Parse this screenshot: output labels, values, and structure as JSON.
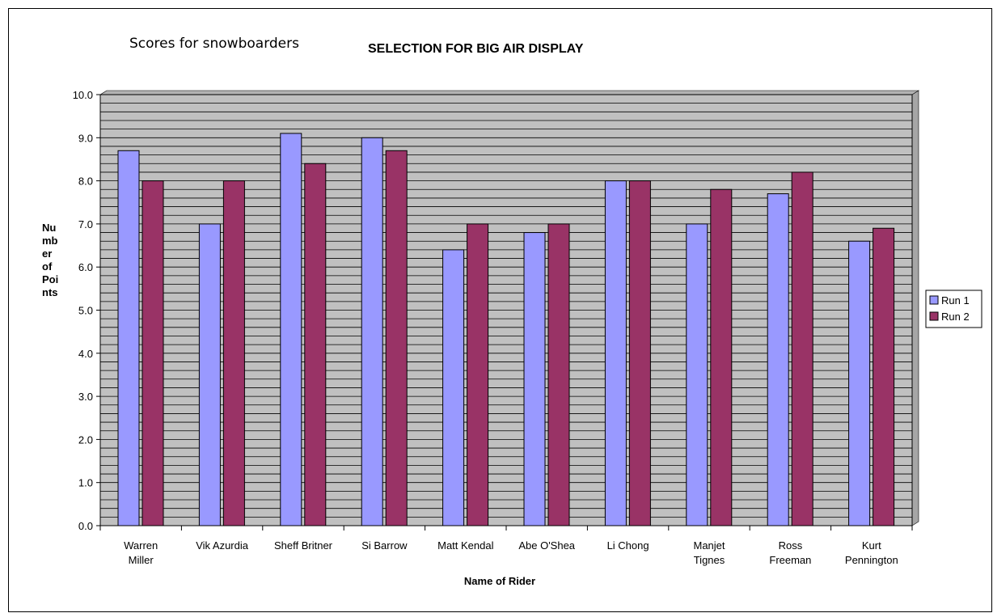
{
  "caption": "Scores for snowboarders",
  "chart_data": {
    "type": "bar",
    "title": "SELECTION FOR BIG AIR DISPLAY",
    "xlabel": "Name of Rider",
    "ylabel": [
      "Nu",
      "mb",
      "er",
      "of",
      "Poi",
      "nts"
    ],
    "ylim": [
      0,
      10
    ],
    "ytick_step": 1,
    "ytick_labels": [
      "0.0",
      "1.0",
      "2.0",
      "3.0",
      "4.0",
      "5.0",
      "6.0",
      "7.0",
      "8.0",
      "9.0",
      "10.0"
    ],
    "grid": true,
    "legend_position": "right",
    "categories": [
      [
        "Warren",
        "Miller"
      ],
      [
        "Vik Azurdia"
      ],
      [
        "Sheff Britner"
      ],
      [
        "Si Barrow"
      ],
      [
        "Matt Kendal"
      ],
      [
        "Abe O'Shea"
      ],
      [
        "Li Chong"
      ],
      [
        "Manjet",
        "Tignes"
      ],
      [
        "Ross",
        "Freeman"
      ],
      [
        "Kurt",
        "Pennington"
      ]
    ],
    "series": [
      {
        "name": "Run 1",
        "color": "#9999ff",
        "values": [
          8.7,
          7.0,
          9.1,
          9.0,
          6.4,
          6.8,
          8.0,
          7.0,
          7.7,
          6.6
        ]
      },
      {
        "name": "Run 2",
        "color": "#993366",
        "values": [
          8.0,
          8.0,
          8.4,
          8.7,
          7.0,
          7.0,
          8.0,
          7.8,
          8.2,
          6.9
        ]
      }
    ]
  }
}
